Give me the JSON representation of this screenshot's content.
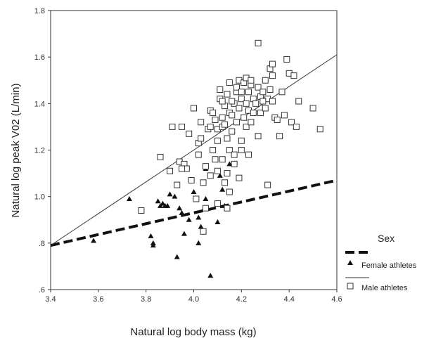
{
  "chart_data": {
    "type": "scatter",
    "xlabel": "Natural log body mass (kg)",
    "ylabel": "Natural log peak V02 (L/min)",
    "xlim": [
      3.4,
      4.6
    ],
    "ylim": [
      0.6,
      1.8
    ],
    "x_ticks": [
      3.4,
      3.6,
      3.8,
      4.0,
      4.2,
      4.4,
      4.6
    ],
    "x_tick_labels": [
      "3.4",
      "3.6",
      "3.8",
      "4.0",
      "4.2",
      "4.4",
      "4.6"
    ],
    "y_ticks": [
      0.6,
      0.8,
      1.0,
      1.2,
      1.4,
      1.6,
      1.8
    ],
    "y_tick_labels": [
      ".6",
      ".8",
      "1.0",
      "1.2",
      "1.4",
      "1.6",
      "1.8"
    ],
    "grid": false,
    "legend": {
      "title": "Sex",
      "position": "right",
      "entries": [
        "Female athletes",
        "Male athletes"
      ]
    },
    "series": [
      {
        "name": "Female athletes",
        "marker": "triangle",
        "color": "#111111",
        "points": [
          [
            3.58,
            0.81
          ],
          [
            3.73,
            0.99
          ],
          [
            3.82,
            0.83
          ],
          [
            3.83,
            0.8
          ],
          [
            3.83,
            0.79
          ],
          [
            3.85,
            0.98
          ],
          [
            3.86,
            0.96
          ],
          [
            3.87,
            0.97
          ],
          [
            3.88,
            0.96
          ],
          [
            3.89,
            0.96
          ],
          [
            3.92,
            1.0
          ],
          [
            3.93,
            0.74
          ],
          [
            3.94,
            0.95
          ],
          [
            3.95,
            0.93
          ],
          [
            3.96,
            0.84
          ],
          [
            3.98,
            0.9
          ],
          [
            4.02,
            0.91
          ],
          [
            4.02,
            0.8
          ],
          [
            4.03,
            0.87
          ],
          [
            4.05,
            1.12
          ],
          [
            4.07,
            0.66
          ],
          [
            4.1,
            0.89
          ],
          [
            4.11,
            1.09
          ],
          [
            4.13,
            0.96
          ],
          [
            4.14,
            0.95
          ],
          [
            4.15,
            1.14
          ],
          [
            4.05,
            0.99
          ],
          [
            4.0,
            1.02
          ],
          [
            3.9,
            1.01
          ],
          [
            4.12,
            1.03
          ]
        ]
      },
      {
        "name": "Male athletes",
        "marker": "open-square",
        "color": "#333333",
        "points": [
          [
            3.78,
            0.94
          ],
          [
            3.86,
            1.17
          ],
          [
            3.9,
            1.11
          ],
          [
            3.91,
            1.3
          ],
          [
            3.93,
            1.05
          ],
          [
            3.94,
            1.15
          ],
          [
            3.95,
            1.3
          ],
          [
            3.96,
            1.14
          ],
          [
            3.97,
            1.12
          ],
          [
            3.99,
            1.07
          ],
          [
            4.0,
            1.38
          ],
          [
            4.01,
            0.99
          ],
          [
            4.02,
            1.23
          ],
          [
            4.03,
            1.25
          ],
          [
            4.04,
            1.06
          ],
          [
            4.04,
            0.85
          ],
          [
            4.05,
            1.13
          ],
          [
            4.06,
            1.29
          ],
          [
            4.07,
            1.3
          ],
          [
            4.07,
            1.37
          ],
          [
            4.08,
            1.36
          ],
          [
            4.08,
            1.2
          ],
          [
            4.09,
            1.16
          ],
          [
            4.1,
            1.29
          ],
          [
            4.1,
            1.24
          ],
          [
            4.1,
            1.11
          ],
          [
            4.11,
            1.42
          ],
          [
            4.11,
            1.46
          ],
          [
            4.12,
            1.3
          ],
          [
            4.12,
            1.34
          ],
          [
            4.13,
            1.31
          ],
          [
            4.13,
            1.39
          ],
          [
            4.14,
            1.44
          ],
          [
            4.14,
            1.25
          ],
          [
            4.15,
            1.2
          ],
          [
            4.15,
            1.36
          ],
          [
            4.15,
            1.49
          ],
          [
            4.16,
            1.35
          ],
          [
            4.16,
            1.28
          ],
          [
            4.17,
            1.4
          ],
          [
            4.17,
            1.18
          ],
          [
            4.18,
            1.45
          ],
          [
            4.18,
            1.47
          ],
          [
            4.18,
            1.32
          ],
          [
            4.19,
            1.38
          ],
          [
            4.19,
            1.5
          ],
          [
            4.2,
            1.24
          ],
          [
            4.2,
            1.42
          ],
          [
            4.21,
            1.34
          ],
          [
            4.21,
            1.49
          ],
          [
            4.22,
            1.3
          ],
          [
            4.22,
            1.4
          ],
          [
            4.23,
            1.37
          ],
          [
            4.23,
            1.45
          ],
          [
            4.24,
            1.32
          ],
          [
            4.24,
            1.48
          ],
          [
            4.25,
            1.36
          ],
          [
            4.25,
            1.42
          ],
          [
            4.26,
            1.4
          ],
          [
            4.27,
            1.66
          ],
          [
            4.27,
            1.47
          ],
          [
            4.28,
            1.36
          ],
          [
            4.28,
            1.43
          ],
          [
            4.29,
            1.45
          ],
          [
            4.3,
            1.5
          ],
          [
            4.3,
            1.38
          ],
          [
            4.31,
            1.42
          ],
          [
            4.31,
            1.05
          ],
          [
            4.32,
            1.46
          ],
          [
            4.32,
            1.55
          ],
          [
            4.33,
            1.52
          ],
          [
            4.33,
            1.41
          ],
          [
            4.34,
            1.34
          ],
          [
            4.35,
            1.33
          ],
          [
            4.36,
            1.26
          ],
          [
            4.37,
            1.45
          ],
          [
            4.38,
            1.35
          ],
          [
            4.39,
            1.59
          ],
          [
            4.4,
            1.53
          ],
          [
            4.41,
            1.32
          ],
          [
            4.42,
            1.52
          ],
          [
            4.43,
            1.3
          ],
          [
            4.44,
            1.41
          ],
          [
            4.5,
            1.38
          ],
          [
            4.53,
            1.29
          ],
          [
            4.13,
            1.06
          ],
          [
            4.14,
            1.1
          ],
          [
            4.19,
            1.08
          ],
          [
            4.2,
            1.2
          ],
          [
            4.15,
            1.02
          ],
          [
            4.23,
            1.18
          ],
          [
            4.27,
            1.26
          ],
          [
            4.17,
            1.14
          ],
          [
            3.95,
            1.12
          ],
          [
            4.09,
            1.33
          ],
          [
            4.12,
            1.41
          ],
          [
            4.22,
            1.51
          ],
          [
            4.16,
            1.41
          ],
          [
            4.29,
            1.41
          ],
          [
            4.07,
            1.09
          ],
          [
            4.05,
            0.95
          ],
          [
            4.1,
            0.97
          ],
          [
            4.14,
            0.95
          ],
          [
            4.02,
            1.18
          ],
          [
            3.98,
            1.27
          ],
          [
            4.2,
            1.45
          ],
          [
            4.33,
            1.57
          ],
          [
            4.24,
            1.5
          ],
          [
            4.12,
            1.16
          ],
          [
            4.03,
            1.32
          ]
        ]
      }
    ],
    "fit_lines": [
      {
        "name": "Female athletes",
        "style": "dashed-thick",
        "x": [
          3.4,
          4.6
        ],
        "y": [
          0.79,
          1.07
        ]
      },
      {
        "name": "Male athletes",
        "style": "solid-thin",
        "x": [
          3.4,
          4.6
        ],
        "y": [
          0.79,
          1.61
        ]
      }
    ]
  }
}
